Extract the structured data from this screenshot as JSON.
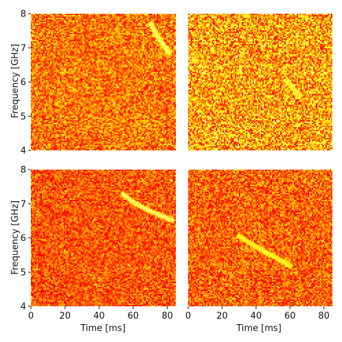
{
  "chart_data": {
    "type": "heatmap",
    "layout": "2x2",
    "colormap": "hot",
    "xlabel": "Time [ms]",
    "ylabel": "Frequency [GHz]",
    "xlim": [
      0,
      85
    ],
    "ylim": [
      4,
      8
    ],
    "xticks": [
      "0",
      "20",
      "40",
      "60",
      "80"
    ],
    "yticks": [
      "4",
      "5",
      "6",
      "7",
      "8"
    ],
    "panels": [
      {
        "id": "top-left",
        "background_level": 0.55,
        "noise_variation": 0.18,
        "burst_track": [
          [
            70.5,
            7.7
          ],
          [
            73.0,
            7.42
          ],
          [
            76.5,
            7.16
          ],
          [
            79.0,
            7.0
          ],
          [
            81.0,
            6.86
          ]
        ],
        "burst_intensity": 0.85
      },
      {
        "id": "top-right",
        "background_level": 0.62,
        "noise_variation": 0.24,
        "burst_track": [
          [
            58.5,
            6.05
          ],
          [
            61.0,
            5.86
          ],
          [
            63.5,
            5.7
          ],
          [
            65.0,
            5.58
          ]
        ],
        "burst_intensity": 0.7
      },
      {
        "id": "bottom-left",
        "background_level": 0.5,
        "noise_variation": 0.16,
        "burst_track": [
          [
            54.0,
            7.28
          ],
          [
            60.0,
            7.05
          ],
          [
            67.0,
            6.86
          ],
          [
            75.0,
            6.68
          ],
          [
            83.0,
            6.52
          ]
        ],
        "burst_intensity": 0.85
      },
      {
        "id": "bottom-right",
        "background_level": 0.52,
        "noise_variation": 0.17,
        "burst_track": [
          [
            30.0,
            6.05
          ],
          [
            38.0,
            5.8
          ],
          [
            48.0,
            5.52
          ],
          [
            55.0,
            5.33
          ],
          [
            60.0,
            5.18
          ]
        ],
        "burst_intensity": 0.75
      }
    ]
  }
}
